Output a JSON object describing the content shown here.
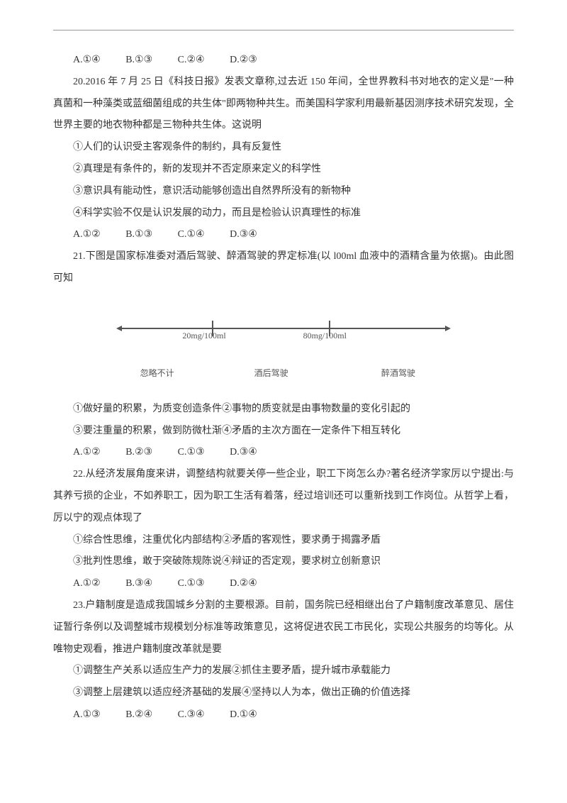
{
  "q19_options": {
    "a": "A.①④",
    "b": "B.①③",
    "c": "C.②④",
    "d": "D.②③"
  },
  "q20": {
    "stem": "20.2016 年 7 月 25 日《科技日报》发表文章称,过去近 150 年间，全世界教科书对地衣的定义是\"一种真菌和一种藻类或蓝细菌组成的共生体\"即两物种共生。而美国科学家利用最新基因测序技术研究发现，全世界主要的地衣物种都是三物种共生体。这说明",
    "o1": "①人们的认识受主客观条件的制约，具有反复性",
    "o2": "②真理是有条件的，新的发现并不否定原来定义的科学性",
    "o3": "③意识具有能动性，意识活动能够创造出自然界所没有的新物种",
    "o4": "④科学实验不仅是认识发展的动力，而且是检验认识真理性的标准",
    "opts": {
      "a": "A.①②",
      "b": "B.①③",
      "c": "C.①④",
      "d": "D.③④"
    }
  },
  "q21": {
    "stem": "21.下图是国家标准委对酒后驾驶、醉酒驾驶的界定标准(以 l00ml 血液中的酒精含量为依据)。由此图可知",
    "diagram": {
      "mark1": "20mg/100ml",
      "mark2": "80mg/100ml",
      "zone1": "忽略不计",
      "zone2": "酒后驾驶",
      "zone3": "醉酒驾驶",
      "axis_color": "#555555",
      "label_color": "#555555",
      "label_fontsize": 12
    },
    "o1": "①做好量的积累，为质变创造条件②事物的质变就是由事物数量的变化引起的",
    "o2": "③要注重量的积累，做到防微杜渐④矛盾的主次方面在一定条件下相互转化",
    "opts": {
      "a": "A.①②",
      "b": "B.②③",
      "c": "C.①③",
      "d": "D.③④"
    }
  },
  "q22": {
    "stem": "22.从经济发展角度来讲，调整结构就要关停一些企业，职工下岗怎么办?著名经济学家厉以宁提出:与其养亏损的企业，不如养职工，因为职工生活有着落，经过培训还可以重新找到工作岗位。从哲学上看，厉以宁的观点体现了",
    "o1": "①综合性思维，注重优化内部结构②矛盾的客观性，要求勇于揭露矛盾",
    "o2": "③批判性思维，敢于突破陈规陈说④辩证的否定观，要求树立创新意识",
    "opts": {
      "a": "A.①②",
      "b": "B.③④",
      "c": "C.①③",
      "d": "D.②④"
    }
  },
  "q23": {
    "stem": "23.户籍制度是造成我国城乡分割的主要根源。目前，国务院已经相继出台了户籍制度改革意见、居住证暂行条例以及调整城市规模划分标准等政策意见，这将促进农民工市民化，实现公共服务的均等化。从唯物史观看，推进户籍制度改革就是要",
    "o1": "①调整生产关系以适应生产力的发展②抓住主要矛盾，提升城市承载能力",
    "o2": "③调整上层建筑以适应经济基础的发展④坚持以人为本，做出正确的价值选择",
    "opts": {
      "a": "A.①③",
      "b": "B.②④",
      "c": "C.③④",
      "d": "D.①④"
    }
  }
}
